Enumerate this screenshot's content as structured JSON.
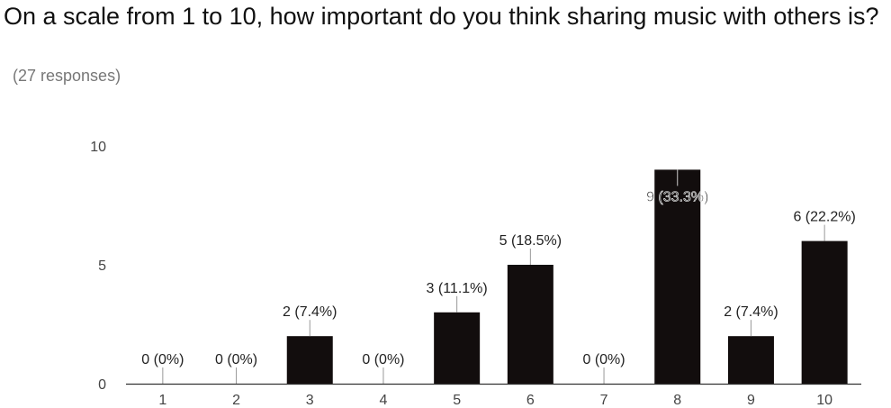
{
  "question": {
    "title": "On a scale from 1 to 10, how important do you think sharing music with others is?",
    "responses": "(27 responses)"
  },
  "colors": {
    "bar": "#120d0d",
    "axis": "#333333",
    "leader": "#999999",
    "tick_text": "#444444",
    "label_text": "#222222"
  },
  "chart_data": {
    "type": "bar",
    "title": "On a scale from 1 to 10, how important do you think sharing music with others is?",
    "subtitle": "(27 responses)",
    "xlabel": "",
    "ylabel": "",
    "categories": [
      "1",
      "2",
      "3",
      "4",
      "5",
      "6",
      "7",
      "8",
      "9",
      "10"
    ],
    "values": [
      0,
      0,
      2,
      0,
      3,
      5,
      0,
      9,
      2,
      6
    ],
    "data_labels": [
      "0 (0%)",
      "0 (0%)",
      "2 (7.4%)",
      "0 (0%)",
      "3 (11.1%)",
      "5 (18.5%)",
      "0 (0%)",
      "9 (33.3%)",
      "2 (7.4%)",
      "6 (22.2%)"
    ],
    "yticks": [
      0,
      5,
      10
    ],
    "ylim": [
      0,
      10
    ],
    "grid": false,
    "legend": "none"
  }
}
